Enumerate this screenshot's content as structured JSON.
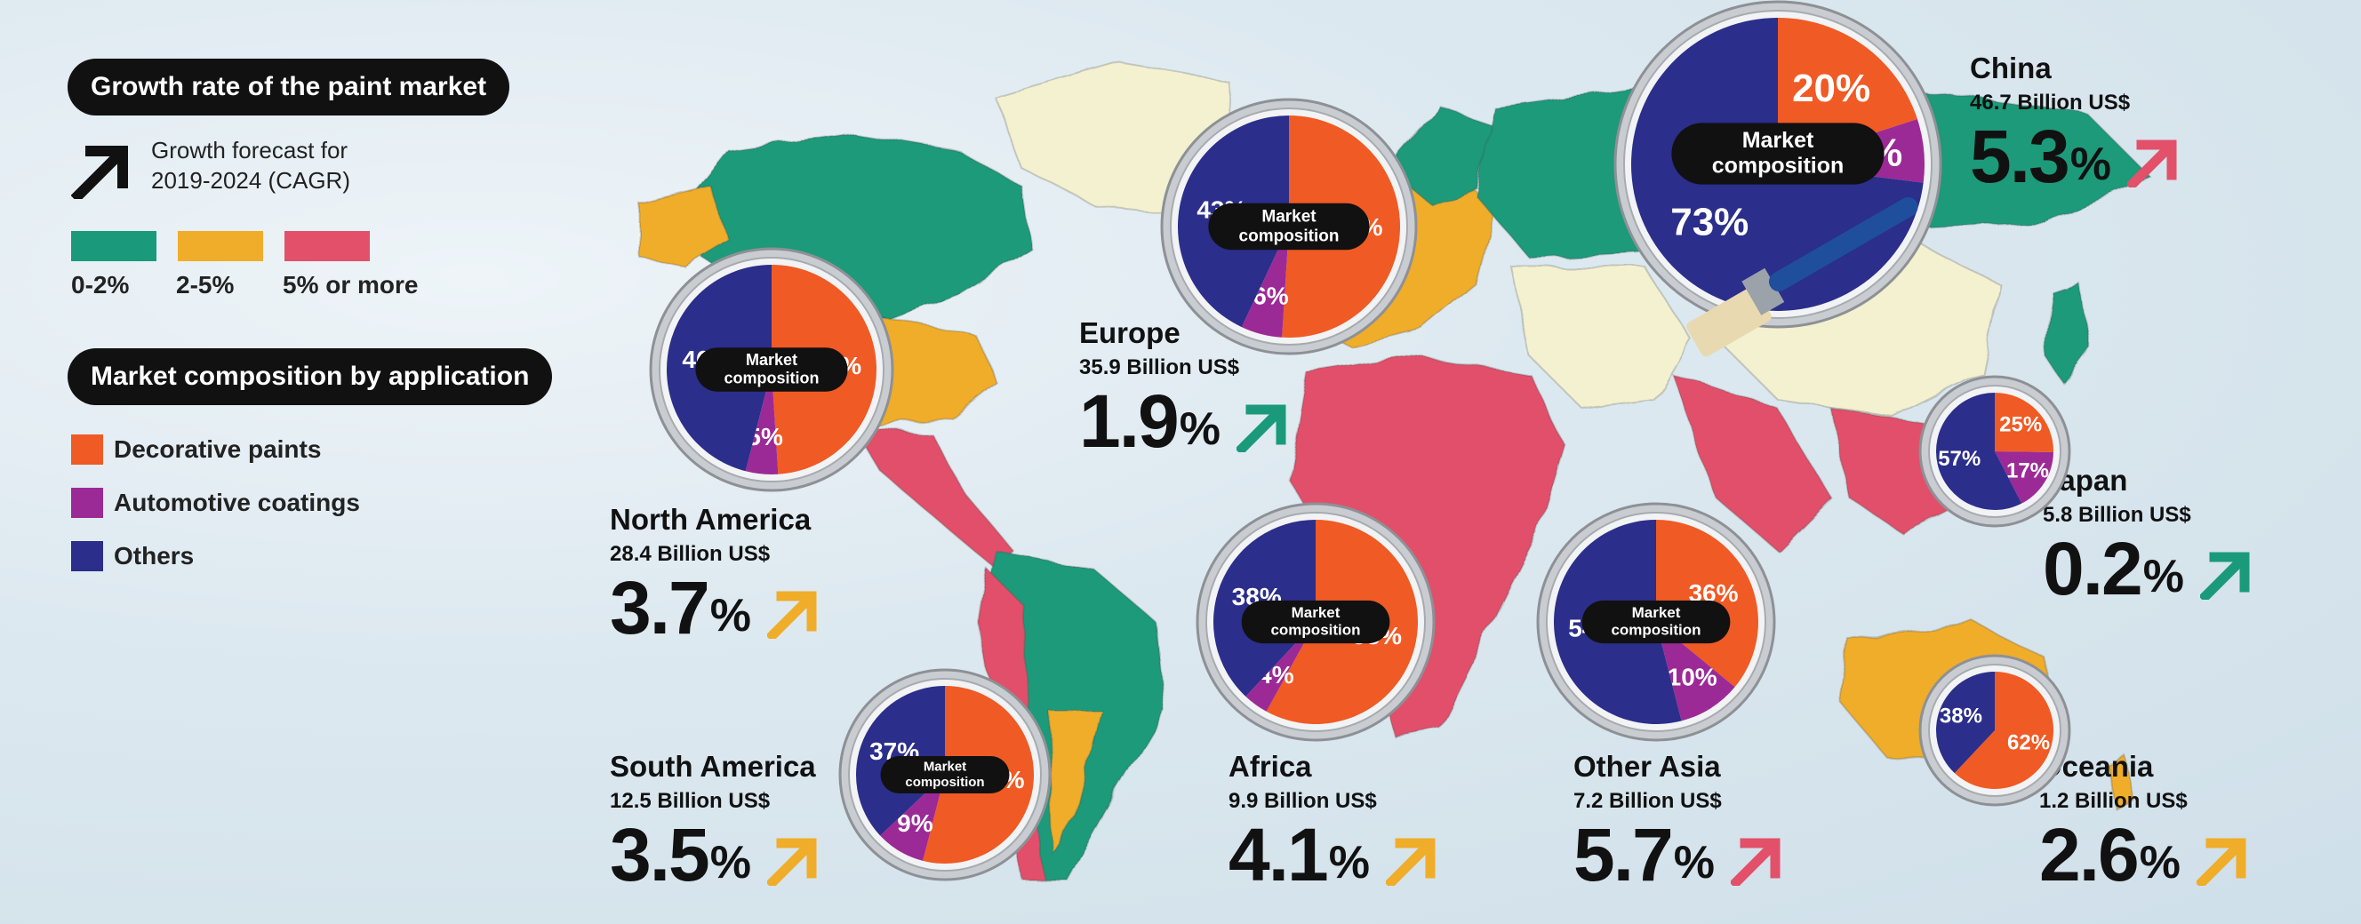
{
  "legend": {
    "growth_title": "Growth rate of the paint market",
    "forecast_line1": "Growth forecast for",
    "forecast_line2": "2019-2024 (CAGR)",
    "bands": [
      {
        "label": "0-2%",
        "color": "#1a9a7a"
      },
      {
        "label": "2-5%",
        "color": "#f0ad2a"
      },
      {
        "label": "5% or more",
        "color": "#e2506a"
      }
    ],
    "composition_title": "Market composition by application",
    "applications": [
      {
        "label": "Decorative paints",
        "color": "#f05a24"
      },
      {
        "label": "Automotive coatings",
        "color": "#9b2a96"
      },
      {
        "label": "Others",
        "color": "#2b2e8a"
      }
    ],
    "center_line1": "Market",
    "center_line2": "composition"
  },
  "chart_data": {
    "type": "pie",
    "title": "Growth rate of the paint market",
    "slice_order": [
      "Decorative paints",
      "Automotive coatings",
      "Others"
    ],
    "regions": [
      {
        "name": "North America",
        "market_size": "28.4 Billion US$",
        "growth_value": "3.7",
        "growth_unit": "%",
        "growth_band": "2-5%",
        "values": [
          49,
          5,
          46
        ],
        "labels": [
          "49%",
          "5%",
          "46%"
        ]
      },
      {
        "name": "South America",
        "market_size": "12.5 Billion US$",
        "growth_value": "3.5",
        "growth_unit": "%",
        "growth_band": "2-5%",
        "values": [
          54,
          9,
          37
        ],
        "labels": [
          "54%",
          "9%",
          "37%"
        ]
      },
      {
        "name": "Europe",
        "market_size": "35.9 Billion US$",
        "growth_value": "1.9",
        "growth_unit": "%",
        "growth_band": "0-2%",
        "values": [
          51,
          6,
          43
        ],
        "labels": [
          "51%",
          "6%",
          "43%"
        ]
      },
      {
        "name": "Africa",
        "market_size": "9.9 Billion US$",
        "growth_value": "4.1",
        "growth_unit": "%",
        "growth_band": "2-5%",
        "values": [
          58,
          4,
          38
        ],
        "labels": [
          "58%",
          "4%",
          "38%"
        ]
      },
      {
        "name": "Other Asia",
        "market_size": "7.2 Billion US$",
        "growth_value": "5.7",
        "growth_unit": "%",
        "growth_band": "5% or more",
        "values": [
          36,
          10,
          54
        ],
        "labels": [
          "36%",
          "10%",
          "54%"
        ]
      },
      {
        "name": "China",
        "market_size": "46.7 Billion US$",
        "growth_value": "5.3",
        "growth_unit": "%",
        "growth_band": "5% or more",
        "values": [
          20,
          7,
          73
        ],
        "labels": [
          "20%",
          "7%",
          "73%"
        ]
      },
      {
        "name": "Japan",
        "market_size": "5.8 Billion US$",
        "growth_value": "0.2",
        "growth_unit": "%",
        "growth_band": "0-2%",
        "values": [
          25,
          17,
          57
        ],
        "labels": [
          "25%",
          "17%",
          "57%"
        ]
      },
      {
        "name": "Oceania",
        "market_size": "1.2 Billion US$",
        "growth_value": "2.6",
        "growth_unit": "%",
        "growth_band": "2-5%",
        "values": [
          62,
          0,
          38
        ],
        "labels": [
          "62%",
          "",
          "38%"
        ]
      }
    ]
  }
}
